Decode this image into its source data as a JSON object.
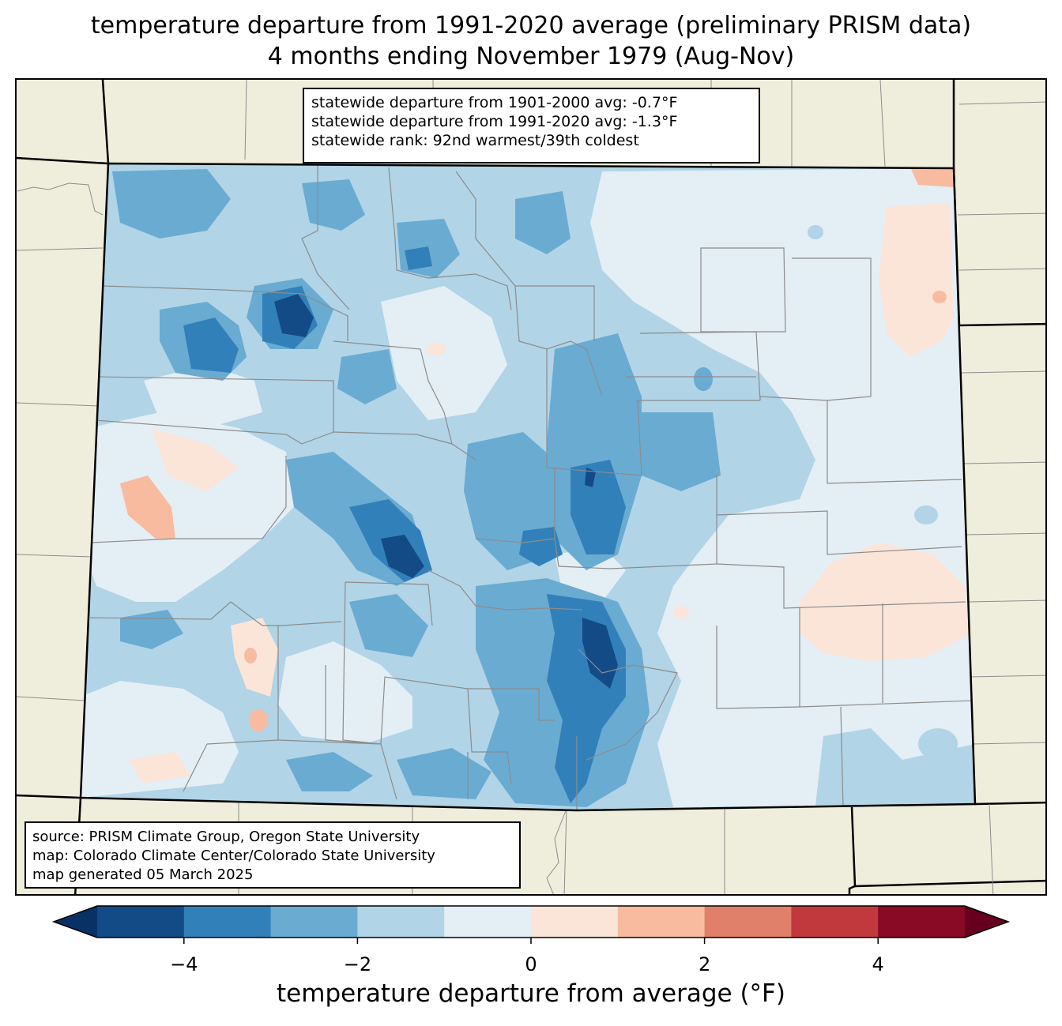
{
  "title": {
    "line1": "temperature departure from 1991-2020 average (preliminary PRISM data)",
    "line2": "4 months ending November 1979 (Aug-Nov)"
  },
  "stats": {
    "line1": "statewide departure from 1901-2000 avg: -0.7°F",
    "line2": "statewide departure from 1991-2020 avg: -1.3°F",
    "line3": "statewide rank: 92nd warmest/39th coldest"
  },
  "source": {
    "line1": "source: PRISM Climate Group, Oregon State University",
    "line2": "map: Colorado Climate Center/Colorado State University",
    "line3": "map generated 05 March 2025"
  },
  "colorbar": {
    "label": "temperature departure from average (°F)",
    "min": -5,
    "max": 5,
    "ticks": [
      {
        "value": -4,
        "label": "−4"
      },
      {
        "value": -2,
        "label": "−2"
      },
      {
        "value": 0,
        "label": "0"
      },
      {
        "value": 2,
        "label": "2"
      },
      {
        "value": 4,
        "label": "4"
      }
    ],
    "bins": [
      {
        "from": -5,
        "to": -4,
        "color": "#134b87"
      },
      {
        "from": -4,
        "to": -3,
        "color": "#3280ba"
      },
      {
        "from": -3,
        "to": -2,
        "color": "#6aabd2"
      },
      {
        "from": -2,
        "to": -1,
        "color": "#b1d4e7"
      },
      {
        "from": -1,
        "to": 0,
        "color": "#e4eef5"
      },
      {
        "from": 0,
        "to": 1,
        "color": "#fbe5d9"
      },
      {
        "from": 1,
        "to": 2,
        "color": "#f8bba0"
      },
      {
        "from": 2,
        "to": 3,
        "color": "#e07f6a"
      },
      {
        "from": 3,
        "to": 4,
        "color": "#c1393c"
      },
      {
        "from": 4,
        "to": 5,
        "color": "#880a25"
      }
    ],
    "under_color": "#083266",
    "over_color": "#67001f"
  },
  "map": {
    "land_color": "#efeedd",
    "county_line_color": "#8c8c8c",
    "state_line_color": "#000000"
  }
}
